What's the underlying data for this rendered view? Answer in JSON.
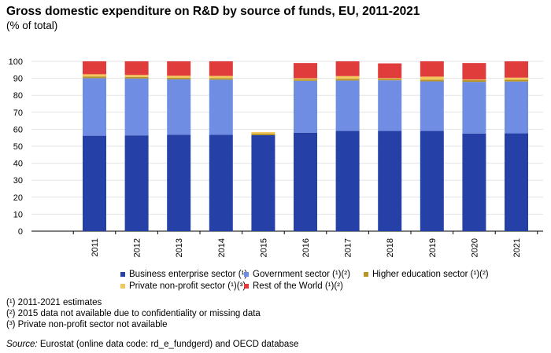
{
  "title": "Gross domestic expenditure on R&D by source of funds, EU, 2011-2021",
  "subtitle": "(% of total)",
  "colors": {
    "business": "#2541a8",
    "government": "#6f8de2",
    "higher_education": "#b7942a",
    "private_non_profit": "#f2c75c",
    "rest_of_world": "#e03c3c",
    "grid": "#e3e3e3"
  },
  "legend": [
    {
      "label": "Business enterprise sector (¹)",
      "color": "#2541a8"
    },
    {
      "label": "Government sector (¹)(²)",
      "color": "#6f8de2"
    },
    {
      "label": "Higher education sector (¹)(²)",
      "color": "#b7942a"
    },
    {
      "label": "Private non-profit sector (¹)(³)",
      "color": "#f2c75c"
    },
    {
      "label": "Rest of the World (¹)(²)",
      "color": "#e03c3c"
    }
  ],
  "notes": [
    "(¹) 2011-2021 estimates",
    "(²) 2015 data not available due to confidentiality or missing data",
    "(³) Private non-profit sector not available"
  ],
  "source": {
    "label": "Source:",
    "text": " Eurostat (online data code: rd_e_fundgerd) and OECD database"
  },
  "chart_data": {
    "type": "bar",
    "stacked": true,
    "categories": [
      "2011",
      "2012",
      "2013",
      "2014",
      "2015",
      "2016",
      "2017",
      "2018",
      "2019",
      "2020",
      "2021"
    ],
    "y_ticks": [
      "0",
      "10",
      "20",
      "30",
      "40",
      "50",
      "60",
      "70",
      "80",
      "90",
      "100"
    ],
    "ylim": [
      0,
      100
    ],
    "grid": true,
    "legend_position": "bottom",
    "series": [
      {
        "name": "Business enterprise sector (¹)",
        "values": [
          56.2,
          56.4,
          56.8,
          56.7,
          56.5,
          58.0,
          59.0,
          59.0,
          59.0,
          57.5,
          57.6
        ]
      },
      {
        "name": "Government sector (¹)(²)",
        "values": [
          33.9,
          33.5,
          32.6,
          32.5,
          null,
          30.5,
          29.7,
          29.8,
          29.2,
          30.4,
          30.5
        ]
      },
      {
        "name": "Higher education sector (¹)(²)",
        "values": [
          1.0,
          0.9,
          0.9,
          0.9,
          0.9,
          0.9,
          1.0,
          0.9,
          1.0,
          1.0,
          1.0
        ]
      },
      {
        "name": "Private non-profit sector (¹)(³)",
        "values": [
          1.3,
          1.2,
          1.2,
          1.3,
          0.9,
          0.6,
          1.6,
          0.4,
          1.8,
          0.4,
          1.3
        ]
      },
      {
        "name": "Rest of the World (¹)(²)",
        "values": [
          7.6,
          8.0,
          8.5,
          8.6,
          null,
          9.0,
          8.7,
          8.7,
          9.0,
          9.7,
          9.6
        ]
      }
    ]
  }
}
